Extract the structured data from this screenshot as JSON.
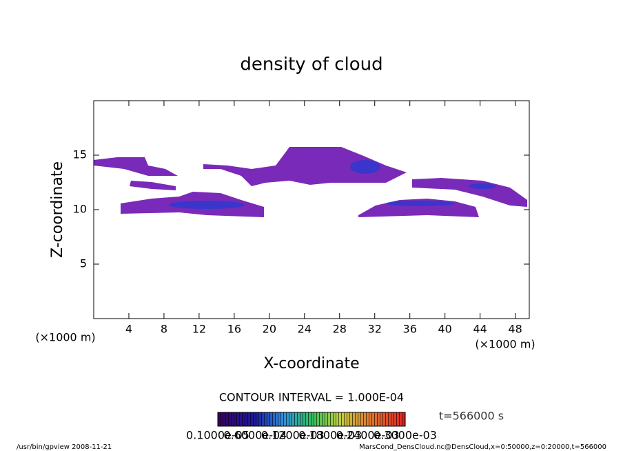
{
  "chart_data": {
    "type": "contour",
    "title": "density of cloud",
    "x_label": "X-coordinate",
    "y_label": "Z-coordinate",
    "x_unit_left": "(×1000 m)",
    "x_unit_right": "(×1000 m)",
    "xlim": [
      0,
      49.6
    ],
    "xticks": [
      4,
      8,
      12,
      16,
      20,
      24,
      28,
      32,
      36,
      40,
      44,
      48
    ],
    "ylim": [
      0,
      20
    ],
    "yticks": [
      5,
      10,
      15
    ],
    "contour_interval": "CONTOUR INTERVAL = 1.000E-04",
    "colorbar_labels": [
      "0.1000e-05",
      "0.6000e-04",
      "0.1200e-03",
      "0.1800e-03",
      "0.2400e-03",
      "0.3000e-03"
    ],
    "time_label": "t=566000 s",
    "footer_left": "/usr/bin/gpview  2008-11-21",
    "footer_right": "MarsCond_DensCloud.nc@DensCloud,x=0:50000,z=0:20000,t=566000"
  }
}
